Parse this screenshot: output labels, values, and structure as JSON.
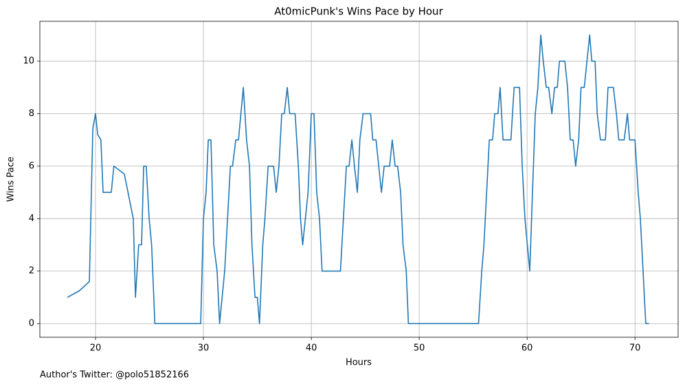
{
  "chart_data": {
    "type": "line",
    "title": "At0micPunk's Wins Pace by Hour",
    "xlabel": "Hours",
    "ylabel": "Wins Pace",
    "footnote": "Author's Twitter: @polo51852166",
    "color": "#1f77b4",
    "grid": true,
    "xlim": [
      14.84,
      74.0
    ],
    "ylim": [
      -0.52,
      11.52
    ],
    "xticks": [
      20,
      30,
      40,
      50,
      60,
      70
    ],
    "yticks": [
      0,
      2,
      4,
      6,
      8,
      10
    ],
    "x": [
      17.39,
      18.5,
      19.43,
      19.75,
      20,
      20.2,
      20.5,
      20.7,
      21.46,
      21.7,
      22.67,
      23.5,
      23.7,
      24,
      24.27,
      24.46,
      24.7,
      24.97,
      25.2,
      25.5,
      29.75,
      30,
      30.25,
      30.45,
      30.7,
      30.96,
      31.27,
      31.5,
      31.97,
      32.5,
      32.7,
      33,
      33.25,
      33.7,
      34,
      34.27,
      34.5,
      34.78,
      35,
      35.2,
      35.5,
      35.7,
      36,
      36.5,
      36.75,
      37,
      37.26,
      37.5,
      37.77,
      38,
      38.5,
      38.8,
      39,
      39.2,
      39.7,
      40,
      40.25,
      40.5,
      40.76,
      41,
      42.7,
      43.25,
      43.5,
      43.76,
      44,
      44.27,
      44.5,
      44.8,
      45.5,
      45.7,
      46,
      46.5,
      46.75,
      47.26,
      47.5,
      47.77,
      48,
      48.28,
      48.5,
      48.8,
      49,
      55.5,
      55.8,
      56,
      56.5,
      56.8,
      57,
      57.3,
      57.5,
      57.77,
      58.5,
      58.8,
      59.3,
      59.55,
      59.8,
      60.25,
      60.5,
      60.76,
      61,
      61.27,
      61.5,
      61.78,
      62,
      62.3,
      62.55,
      62.8,
      63,
      63.5,
      63.75,
      64,
      64.27,
      64.5,
      64.78,
      65,
      65.3,
      65.8,
      66,
      66.3,
      66.5,
      66.8,
      67.26,
      67.5,
      68,
      68.28,
      68.5,
      69,
      69.3,
      69.5,
      70,
      70.3,
      70.5,
      71,
      71.3
    ],
    "values": [
      1,
      1.25,
      1.6,
      7.43,
      8,
      7.2,
      7,
      5,
      5,
      6,
      5.7,
      4,
      1,
      3,
      3,
      6,
      6,
      4,
      3,
      0,
      0,
      4,
      5,
      7,
      7,
      3,
      2,
      0,
      2,
      6,
      6,
      7,
      7,
      9,
      7,
      6,
      3,
      1,
      1,
      0,
      3,
      4,
      6,
      6,
      5,
      6,
      8,
      8,
      9,
      8,
      8,
      6,
      4,
      3,
      5,
      8,
      8,
      5,
      4,
      2,
      2,
      6,
      6,
      7,
      6,
      5,
      7,
      8,
      8,
      7,
      7,
      5,
      6,
      6,
      7,
      6,
      6,
      5,
      3,
      2,
      0,
      0,
      2,
      3,
      7,
      7,
      8,
      8,
      9,
      7,
      7,
      9,
      9,
      6,
      4,
      2,
      5,
      8,
      9,
      11,
      10,
      9,
      9,
      8,
      9,
      9,
      10,
      10,
      9,
      7,
      7,
      6,
      7,
      9,
      9,
      11,
      10,
      10,
      8,
      7,
      7,
      9,
      9,
      8,
      7,
      7,
      8,
      7,
      7,
      5,
      4,
      0,
      0
    ]
  }
}
